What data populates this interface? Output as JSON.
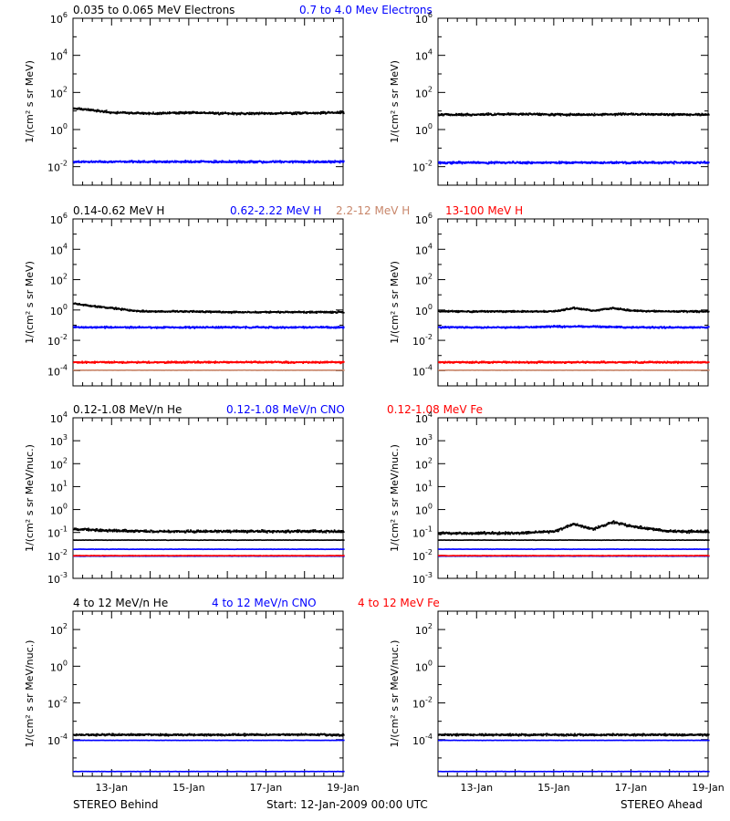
{
  "colors": {
    "black": "#000000",
    "blue": "#0000ff",
    "red": "#ff0000",
    "tan": "#c8866a"
  },
  "footer": {
    "left": "STEREO Behind",
    "center": "Start: 12-Jan-2009 00:00 UTC",
    "right": "STEREO Ahead"
  },
  "date_ticks": [
    "13-Jan",
    "15-Jan",
    "17-Jan",
    "19-Jan"
  ],
  "chart_data": [
    {
      "type": "scatter",
      "row": 0,
      "side": "behind",
      "legend": [
        {
          "text": "0.035 to 0.065 MeV Electrons",
          "color": "black"
        },
        {
          "text": "0.7 to 4.0 Mev Electrons",
          "color": "blue"
        }
      ],
      "ylabel": "1/(cm² s sr MeV)",
      "yscale": "log",
      "ylim": [
        0.001,
        1000000
      ],
      "tick_exps": [
        -2,
        0,
        2,
        4,
        6
      ],
      "xlim": [
        "2009-01-12",
        "2009-01-19"
      ],
      "series": [
        {
          "color": "black",
          "x": [
            "2009-01-12",
            "2009-01-12T12:00",
            "2009-01-13",
            "2009-01-14",
            "2009-01-15",
            "2009-01-16",
            "2009-01-17",
            "2009-01-18",
            "2009-01-19"
          ],
          "values": [
            15,
            12,
            9,
            8,
            9,
            8,
            8,
            8.5,
            9
          ]
        },
        {
          "color": "blue",
          "x": [
            "2009-01-12",
            "2009-01-13",
            "2009-01-14",
            "2009-01-15",
            "2009-01-16",
            "2009-01-17",
            "2009-01-18",
            "2009-01-19"
          ],
          "values": [
            0.02,
            0.02,
            0.02,
            0.02,
            0.02,
            0.02,
            0.02,
            0.02
          ]
        }
      ]
    },
    {
      "type": "scatter",
      "row": 0,
      "side": "ahead",
      "legend": [],
      "ylabel": "1/(cm² s sr MeV)",
      "yscale": "log",
      "ylim": [
        0.001,
        1000000
      ],
      "tick_exps": [
        -2,
        0,
        2,
        4,
        6
      ],
      "xlim": [
        "2009-01-12",
        "2009-01-19"
      ],
      "series": [
        {
          "color": "black",
          "x": [
            "2009-01-12",
            "2009-01-13",
            "2009-01-14",
            "2009-01-15",
            "2009-01-16",
            "2009-01-17",
            "2009-01-18",
            "2009-01-19"
          ],
          "values": [
            7,
            7,
            7.5,
            7,
            7,
            7.5,
            7,
            7
          ]
        },
        {
          "color": "blue",
          "x": [
            "2009-01-12",
            "2009-01-13",
            "2009-01-14",
            "2009-01-15",
            "2009-01-16",
            "2009-01-17",
            "2009-01-18",
            "2009-01-19"
          ],
          "values": [
            0.018,
            0.018,
            0.018,
            0.018,
            0.018,
            0.018,
            0.018,
            0.018
          ]
        }
      ]
    },
    {
      "type": "scatter",
      "row": 1,
      "side": "behind",
      "legend": [
        {
          "text": "0.14-0.62 MeV H",
          "color": "black"
        },
        {
          "text": "0.62-2.22 MeV H",
          "color": "blue"
        },
        {
          "text": "2.2-12 MeV H",
          "color": "tan"
        },
        {
          "text": "13-100 MeV H",
          "color": "red"
        }
      ],
      "ylabel": "1/(cm² s sr MeV)",
      "yscale": "log",
      "ylim": [
        1e-05,
        1000000
      ],
      "tick_exps": [
        -4,
        -2,
        0,
        2,
        4,
        6
      ],
      "xlim": [
        "2009-01-12",
        "2009-01-19"
      ],
      "series": [
        {
          "color": "black",
          "x": [
            "2009-01-12",
            "2009-01-12T12:00",
            "2009-01-13",
            "2009-01-13T12:00",
            "2009-01-14",
            "2009-01-15",
            "2009-01-16",
            "2009-01-17",
            "2009-01-18",
            "2009-01-19"
          ],
          "values": [
            3,
            2,
            1.5,
            1.0,
            0.9,
            0.9,
            0.8,
            0.8,
            0.8,
            0.8
          ]
        },
        {
          "color": "blue",
          "x": [
            "2009-01-12",
            "2009-01-13",
            "2009-01-14",
            "2009-01-15",
            "2009-01-16",
            "2009-01-17",
            "2009-01-18",
            "2009-01-19"
          ],
          "values": [
            0.08,
            0.08,
            0.08,
            0.08,
            0.08,
            0.08,
            0.08,
            0.08
          ]
        },
        {
          "color": "red",
          "x": [
            "2009-01-12",
            "2009-01-13",
            "2009-01-14",
            "2009-01-15",
            "2009-01-16",
            "2009-01-17",
            "2009-01-18",
            "2009-01-19"
          ],
          "values": [
            0.0004,
            0.0004,
            0.0004,
            0.0004,
            0.0004,
            0.0004,
            0.0004,
            0.0004
          ]
        },
        {
          "color": "tan",
          "x": [
            "2009-01-12",
            "2009-01-19"
          ],
          "values": [
            0.00012,
            0.00012
          ]
        }
      ]
    },
    {
      "type": "scatter",
      "row": 1,
      "side": "ahead",
      "legend": [],
      "ylabel": "1/(cm² s sr MeV)",
      "yscale": "log",
      "ylim": [
        1e-05,
        1000000
      ],
      "tick_exps": [
        -4,
        -2,
        0,
        2,
        4,
        6
      ],
      "xlim": [
        "2009-01-12",
        "2009-01-19"
      ],
      "series": [
        {
          "color": "black",
          "x": [
            "2009-01-12",
            "2009-01-13",
            "2009-01-14",
            "2009-01-15",
            "2009-01-15T12:00",
            "2009-01-16",
            "2009-01-16T12:00",
            "2009-01-17",
            "2009-01-18",
            "2009-01-19"
          ],
          "values": [
            0.9,
            0.9,
            0.9,
            0.9,
            1.5,
            1.0,
            1.5,
            1.0,
            0.9,
            0.9
          ]
        },
        {
          "color": "blue",
          "x": [
            "2009-01-12",
            "2009-01-13",
            "2009-01-14",
            "2009-01-15",
            "2009-01-16",
            "2009-01-17",
            "2009-01-18",
            "2009-01-19"
          ],
          "values": [
            0.08,
            0.08,
            0.08,
            0.09,
            0.09,
            0.08,
            0.08,
            0.08
          ]
        },
        {
          "color": "red",
          "x": [
            "2009-01-12",
            "2009-01-13",
            "2009-01-14",
            "2009-01-15",
            "2009-01-16",
            "2009-01-17",
            "2009-01-18",
            "2009-01-19"
          ],
          "values": [
            0.0004,
            0.0004,
            0.0004,
            0.0004,
            0.0004,
            0.0004,
            0.0004,
            0.0004
          ]
        },
        {
          "color": "tan",
          "x": [
            "2009-01-12",
            "2009-01-19"
          ],
          "values": [
            0.00012,
            0.00012
          ]
        }
      ]
    },
    {
      "type": "scatter",
      "row": 2,
      "side": "behind",
      "legend": [
        {
          "text": "0.12-1.08 MeV/n He",
          "color": "black"
        },
        {
          "text": "0.12-1.08 MeV/n CNO",
          "color": "blue"
        },
        {
          "text": "0.12-1.08 MeV Fe",
          "color": "red"
        }
      ],
      "ylabel": "1/(cm² s sr MeV/nuc.)",
      "yscale": "log",
      "ylim": [
        0.001,
        10000
      ],
      "tick_exps": [
        -3,
        -2,
        -1,
        0,
        1,
        2,
        3,
        4
      ],
      "xlim": [
        "2009-01-12",
        "2009-01-19"
      ],
      "series": [
        {
          "color": "black",
          "x": [
            "2009-01-12",
            "2009-01-13",
            "2009-01-14",
            "2009-01-15",
            "2009-01-16",
            "2009-01-17",
            "2009-01-18",
            "2009-01-19"
          ],
          "values": [
            0.15,
            0.13,
            0.12,
            0.12,
            0.12,
            0.12,
            0.12,
            0.12
          ]
        },
        {
          "color": "black",
          "x": [
            "2009-01-12",
            "2009-01-19"
          ],
          "values": [
            0.05,
            0.05
          ]
        },
        {
          "color": "blue",
          "x": [
            "2009-01-12",
            "2009-01-19"
          ],
          "values": [
            0.02,
            0.02
          ]
        },
        {
          "color": "blue",
          "x": [
            "2009-01-12",
            "2009-01-19"
          ],
          "values": [
            0.01,
            0.01
          ]
        },
        {
          "color": "red",
          "x": [
            "2009-01-12",
            "2009-01-19"
          ],
          "values": [
            0.0105,
            0.0105
          ]
        }
      ]
    },
    {
      "type": "scatter",
      "row": 2,
      "side": "ahead",
      "legend": [],
      "ylabel": "1/(cm² s sr MeV/nuc.)",
      "yscale": "log",
      "ylim": [
        0.001,
        10000
      ],
      "tick_exps": [
        -3,
        -2,
        -1,
        0,
        1,
        2,
        3,
        4
      ],
      "xlim": [
        "2009-01-12",
        "2009-01-19"
      ],
      "series": [
        {
          "color": "black",
          "x": [
            "2009-01-12",
            "2009-01-14",
            "2009-01-15",
            "2009-01-15T12:00",
            "2009-01-16",
            "2009-01-16T12:00",
            "2009-01-17",
            "2009-01-18",
            "2009-01-19"
          ],
          "values": [
            0.1,
            0.1,
            0.12,
            0.25,
            0.15,
            0.3,
            0.2,
            0.12,
            0.12
          ]
        },
        {
          "color": "black",
          "x": [
            "2009-01-12",
            "2009-01-19"
          ],
          "values": [
            0.05,
            0.05
          ]
        },
        {
          "color": "blue",
          "x": [
            "2009-01-12",
            "2009-01-19"
          ],
          "values": [
            0.02,
            0.02
          ]
        },
        {
          "color": "blue",
          "x": [
            "2009-01-12",
            "2009-01-19"
          ],
          "values": [
            0.01,
            0.01
          ]
        },
        {
          "color": "red",
          "x": [
            "2009-01-12",
            "2009-01-19"
          ],
          "values": [
            0.0105,
            0.0105
          ]
        }
      ]
    },
    {
      "type": "scatter",
      "row": 3,
      "side": "behind",
      "legend": [
        {
          "text": "4 to 12 MeV/n He",
          "color": "black"
        },
        {
          "text": "4 to 12 MeV/n CNO",
          "color": "blue"
        },
        {
          "text": "4 to 12 MeV Fe",
          "color": "red"
        }
      ],
      "ylabel": "1/(cm² s sr MeV/nuc.)",
      "yscale": "log",
      "ylim": [
        1e-06,
        1000
      ],
      "tick_exps": [
        -4,
        -2,
        0,
        2
      ],
      "xlim": [
        "2009-01-12",
        "2009-01-19"
      ],
      "series": [
        {
          "color": "black",
          "x": [
            "2009-01-12",
            "2009-01-13",
            "2009-01-14",
            "2009-01-15",
            "2009-01-16",
            "2009-01-17",
            "2009-01-18",
            "2009-01-19"
          ],
          "values": [
            0.0002,
            0.0002,
            0.0002,
            0.0002,
            0.0002,
            0.0002,
            0.0002,
            0.0002
          ]
        },
        {
          "color": "blue",
          "x": [
            "2009-01-12",
            "2009-01-19"
          ],
          "values": [
            0.0001,
            0.0001
          ]
        },
        {
          "color": "blue",
          "x": [
            "2009-01-12",
            "2009-01-19"
          ],
          "values": [
            2e-06,
            2e-06
          ]
        }
      ]
    },
    {
      "type": "scatter",
      "row": 3,
      "side": "ahead",
      "legend": [],
      "ylabel": "1/(cm² s sr MeV/nuc.)",
      "yscale": "log",
      "ylim": [
        1e-06,
        1000
      ],
      "tick_exps": [
        -4,
        -2,
        0,
        2
      ],
      "xlim": [
        "2009-01-12",
        "2009-01-19"
      ],
      "series": [
        {
          "color": "black",
          "x": [
            "2009-01-12",
            "2009-01-13",
            "2009-01-14",
            "2009-01-15",
            "2009-01-16",
            "2009-01-17",
            "2009-01-18",
            "2009-01-19"
          ],
          "values": [
            0.0002,
            0.0002,
            0.0002,
            0.0002,
            0.0002,
            0.0002,
            0.0002,
            0.0002
          ]
        },
        {
          "color": "blue",
          "x": [
            "2009-01-12",
            "2009-01-19"
          ],
          "values": [
            0.0001,
            0.0001
          ]
        },
        {
          "color": "blue",
          "x": [
            "2009-01-12",
            "2009-01-19"
          ],
          "values": [
            2e-06,
            2e-06
          ]
        }
      ]
    }
  ]
}
